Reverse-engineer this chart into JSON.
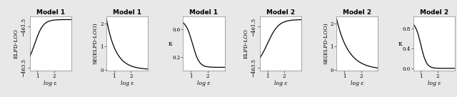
{
  "titles": [
    "Model 1",
    "Model 1",
    "Model 1",
    "Model 2",
    "Model 2",
    "Model 2"
  ],
  "ylabels": [
    "ELPD-LOO",
    "SE(ELPD-LOO)",
    "κ",
    "ELPD-LOO",
    "SE(ELPD-LOO)",
    "κ"
  ],
  "xlabel": "log ε",
  "xlim": [
    0.55,
    3.0
  ],
  "model1_elpd_ylim": [
    -463.65,
    -461.0
  ],
  "model1_elpd_yticks": [
    -463.5,
    -461.5
  ],
  "model1_se_ylim": [
    -0.05,
    2.3
  ],
  "model1_se_yticks": [
    0.0,
    1.0,
    2.0
  ],
  "model1_kappa_ylim": [
    0.0,
    0.78
  ],
  "model1_kappa_yticks": [
    0.2,
    0.6
  ],
  "model2_elpd_ylim": [
    -463.65,
    -461.0
  ],
  "model2_elpd_yticks": [
    -463.5,
    -461.5
  ],
  "model2_se_ylim": [
    -0.05,
    2.3
  ],
  "model2_se_yticks": [
    0.0,
    1.0,
    2.0
  ],
  "model2_kappa_ylim": [
    -0.05,
    1.05
  ],
  "model2_kappa_yticks": [
    0.0,
    0.4,
    0.8
  ],
  "xticks": [
    1.0,
    2.0
  ],
  "line_color": "#000000",
  "bg_color": "#ffffff",
  "fig_bg_color": "#e8e8e8",
  "title_fontsize": 6.5,
  "label_fontsize": 5.5,
  "tick_fontsize": 5.0
}
